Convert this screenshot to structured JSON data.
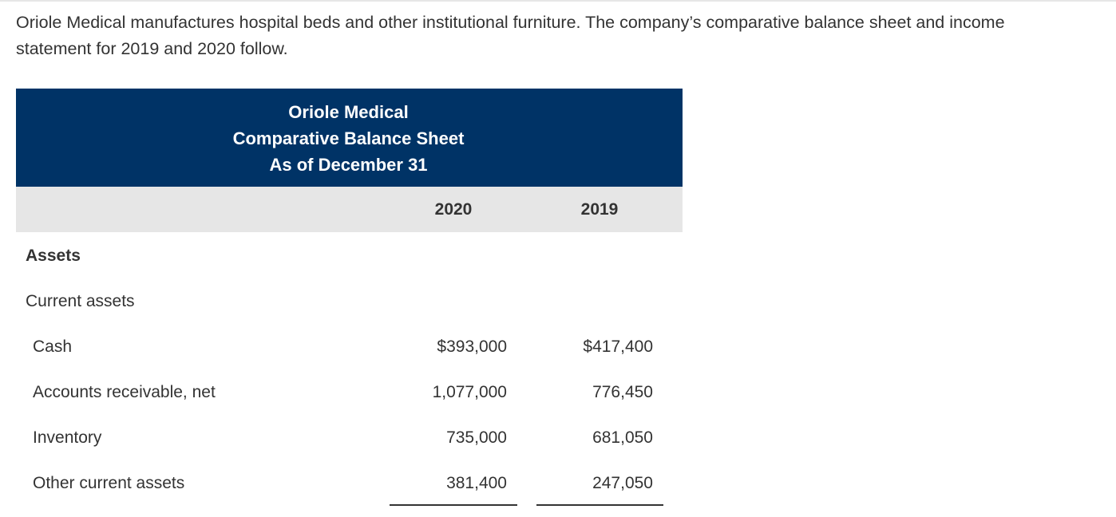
{
  "intro": {
    "line1": "Oriole Medical manufactures hospital beds and other institutional furniture. The company’s comparative balance sheet and income",
    "line2": "statement for 2019 and 2020 follow."
  },
  "sheet": {
    "company": "Oriole Medical",
    "title": "Comparative Balance Sheet",
    "date": "As of December 31",
    "columns": [
      "2020",
      "2019"
    ]
  },
  "sections": {
    "assets_label": "Assets",
    "current_assets_label": "Current assets"
  },
  "rows": [
    {
      "label": "Cash",
      "v2020": "$393,000",
      "v2019": "$417,400"
    },
    {
      "label": "Accounts receivable, net",
      "v2020": "1,077,000",
      "v2019": "776,450"
    },
    {
      "label": "Inventory",
      "v2020": "735,000",
      "v2019": "681,050"
    },
    {
      "label": "Other current assets",
      "v2020": "381,400",
      "v2019": "247,050"
    }
  ]
}
